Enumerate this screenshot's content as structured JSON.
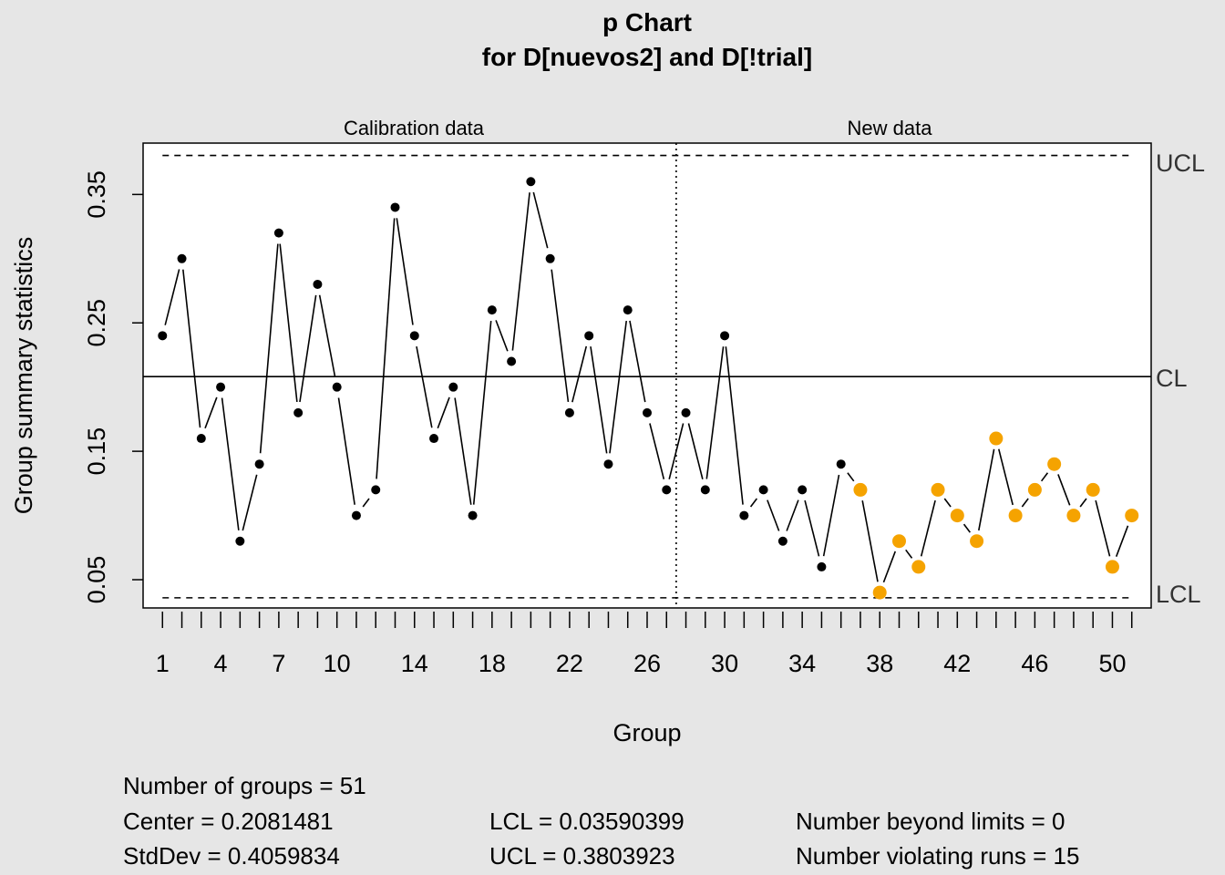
{
  "chart_data": {
    "type": "line",
    "title": "p Chart",
    "subtitle": "for D[nuevos2] and D[!trial]",
    "xlabel": "Group",
    "ylabel": "Group summary statistics",
    "section_labels": [
      "Calibration data",
      "New data"
    ],
    "calibration_groups": 27,
    "x": [
      1,
      2,
      3,
      4,
      5,
      6,
      7,
      8,
      9,
      10,
      11,
      12,
      13,
      14,
      15,
      16,
      17,
      18,
      19,
      20,
      21,
      22,
      23,
      24,
      25,
      26,
      27,
      28,
      29,
      30,
      31,
      32,
      33,
      34,
      35,
      36,
      37,
      38,
      39,
      40,
      41,
      42,
      43,
      44,
      45,
      46,
      47,
      48,
      49,
      50,
      51
    ],
    "values": [
      0.24,
      0.3,
      0.16,
      0.2,
      0.08,
      0.14,
      0.32,
      0.18,
      0.28,
      0.2,
      0.1,
      0.12,
      0.34,
      0.24,
      0.16,
      0.2,
      0.1,
      0.26,
      0.22,
      0.36,
      0.3,
      0.18,
      0.24,
      0.14,
      0.26,
      0.18,
      0.12,
      0.18,
      0.12,
      0.24,
      0.1,
      0.12,
      0.08,
      0.12,
      0.06,
      0.14,
      0.12,
      0.04,
      0.08,
      0.06,
      0.12,
      0.1,
      0.08,
      0.16,
      0.1,
      0.12,
      0.14,
      0.1,
      0.12,
      0.06,
      0.1
    ],
    "violating_from": 37,
    "center": 0.2081481,
    "lcl": 0.03590399,
    "ucl": 0.3803923,
    "limit_labels": [
      "UCL",
      "CL",
      "LCL"
    ],
    "ylim": [
      0.028,
      0.39
    ],
    "xlim": [
      0,
      52
    ],
    "y_ticks": [
      "0.05",
      "0.15",
      "0.25",
      "0.35"
    ],
    "x_tick_labels": [
      "1",
      "4",
      "7",
      "10",
      "14",
      "18",
      "22",
      "26",
      "30",
      "34",
      "38",
      "42",
      "46",
      "50"
    ],
    "colors": {
      "point": "#000000",
      "violating_point": "#f5a300",
      "background": "#e6e6e6",
      "plot_bg": "#ffffff"
    }
  },
  "stats": {
    "number_of_groups": "Number of groups = 51",
    "center": "Center = 0.2081481",
    "stddev": "StdDev = 0.4059834",
    "lcl": "LCL = 0.03590399",
    "ucl": "UCL = 0.3803923",
    "beyond_limits": "Number beyond limits = 0",
    "violating_runs": "Number violating runs = 15"
  }
}
